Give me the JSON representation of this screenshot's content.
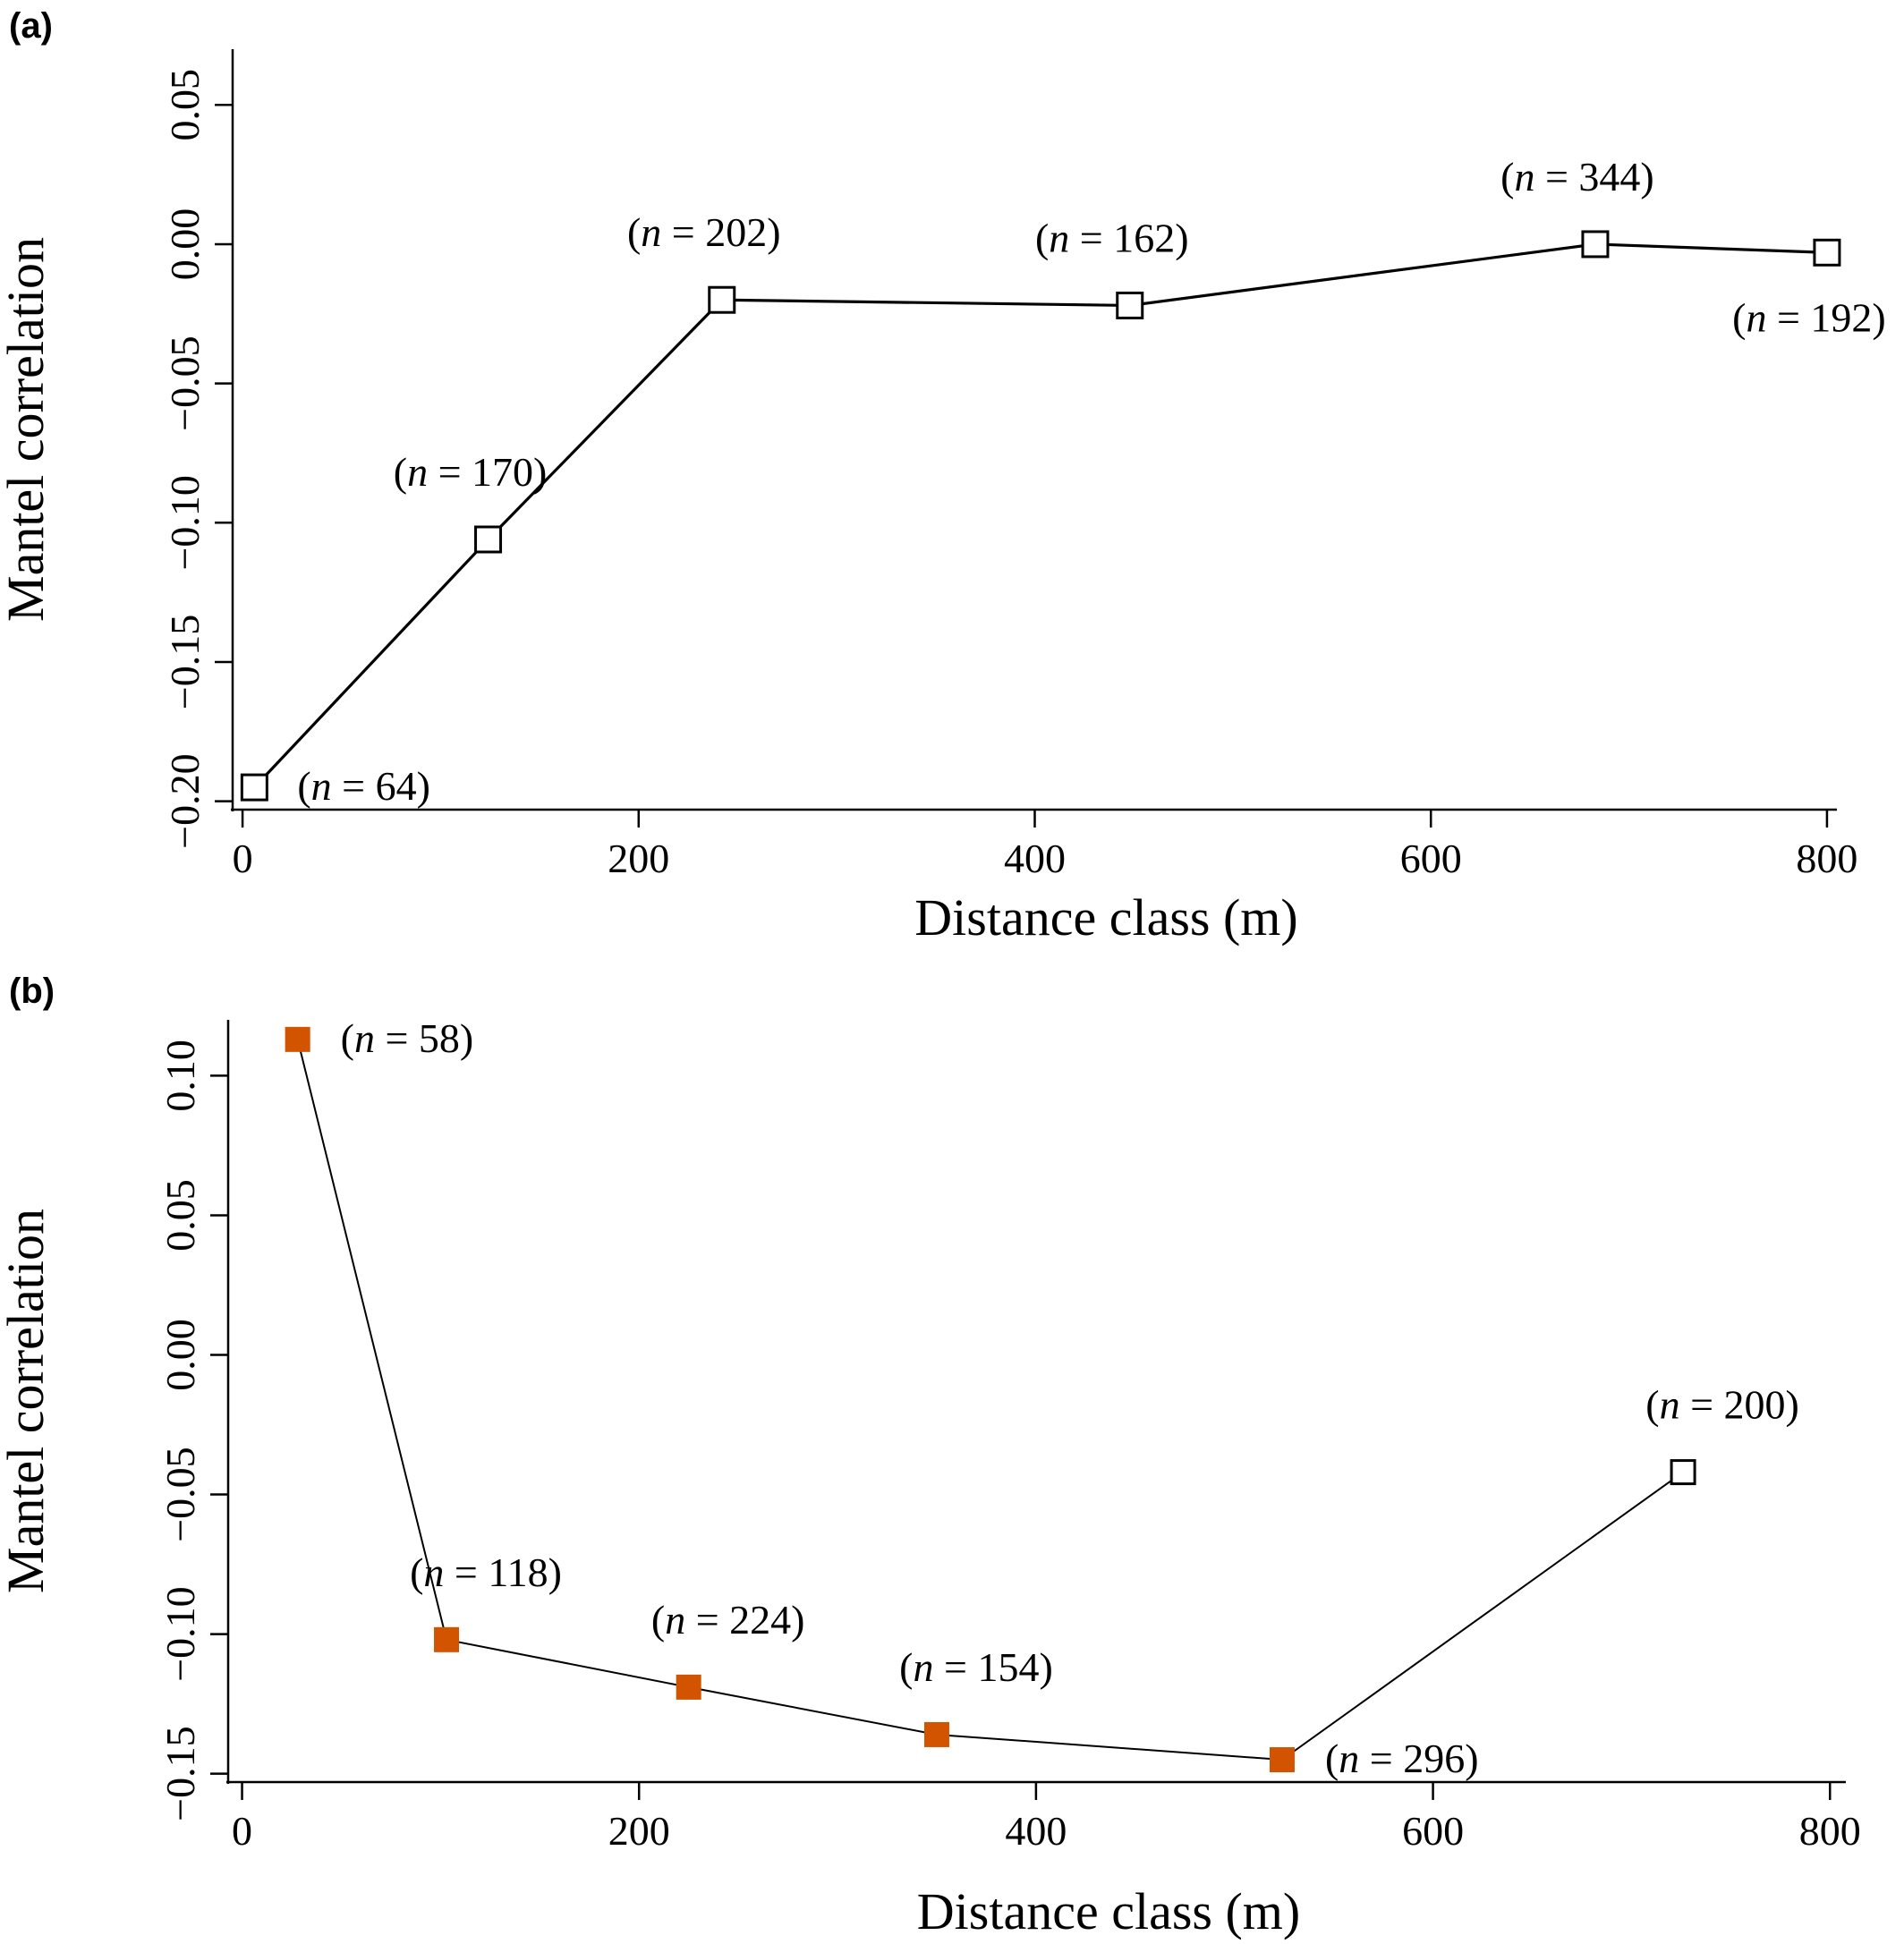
{
  "chart_data": [
    {
      "panel": "(a)",
      "type": "line",
      "xlabel": "Distance class (m)",
      "ylabel": "Mantel correlation",
      "xlim": [
        -5,
        805
      ],
      "ylim": [
        -0.203,
        0.07
      ],
      "xticks": [
        0,
        200,
        400,
        600,
        800
      ],
      "xtick_labels": [
        "0",
        "200",
        "400",
        "600",
        "800"
      ],
      "yticks": [
        -0.2,
        -0.15,
        -0.1,
        -0.05,
        0.0,
        0.05
      ],
      "ytick_labels": [
        "−0.20",
        "−0.15",
        "−0.10",
        "−0.05",
        "0.00",
        "0.05"
      ],
      "grid": false,
      "points": [
        {
          "x": 6,
          "y": -0.195,
          "n": "64",
          "significant": false,
          "label_pos": "right"
        },
        {
          "x": 124,
          "y": -0.106,
          "n": "170",
          "significant": false,
          "label_pos": "above"
        },
        {
          "x": 242,
          "y": -0.02,
          "n": "202",
          "significant": false,
          "label_pos": "above"
        },
        {
          "x": 448,
          "y": -0.022,
          "n": "162",
          "significant": false,
          "label_pos": "above"
        },
        {
          "x": 683,
          "y": 0.0,
          "n": "344",
          "significant": false,
          "label_pos": "above"
        },
        {
          "x": 800,
          "y": -0.003,
          "n": "192",
          "significant": false,
          "label_pos": "below"
        }
      ]
    },
    {
      "panel": "(b)",
      "type": "line",
      "xlabel": "Distance class (m)",
      "ylabel": "Mantel correlation",
      "xlim": [
        -7,
        808
      ],
      "ylim": [
        -0.153,
        0.12
      ],
      "xticks": [
        0,
        200,
        400,
        600,
        800
      ],
      "xtick_labels": [
        "0",
        "200",
        "400",
        "600",
        "800"
      ],
      "yticks": [
        -0.15,
        -0.1,
        -0.05,
        0.0,
        0.05,
        0.1
      ],
      "ytick_labels": [
        "−0.15",
        "−0.10",
        "−0.05",
        "0.00",
        "0.05",
        "0.10"
      ],
      "grid": false,
      "points": [
        {
          "x": 28,
          "y": 0.113,
          "n": "58",
          "significant": true,
          "label_pos": "right"
        },
        {
          "x": 103,
          "y": -0.102,
          "n": "118",
          "significant": true,
          "label_pos": "above"
        },
        {
          "x": 225,
          "y": -0.119,
          "n": "224",
          "significant": true,
          "label_pos": "above"
        },
        {
          "x": 350,
          "y": -0.136,
          "n": "154",
          "significant": true,
          "label_pos": "above"
        },
        {
          "x": 524,
          "y": -0.145,
          "n": "296",
          "significant": true,
          "label_pos": "right"
        },
        {
          "x": 726,
          "y": -0.042,
          "n": "200",
          "significant": false,
          "label_pos": "above"
        }
      ]
    }
  ],
  "legend_symbols": {
    "significant_fill": "#d35400",
    "nonsignificant_fill": "#ffffff",
    "stroke": "#000000"
  },
  "label_text": {
    "n_symbol": "n",
    "equals": " = "
  }
}
